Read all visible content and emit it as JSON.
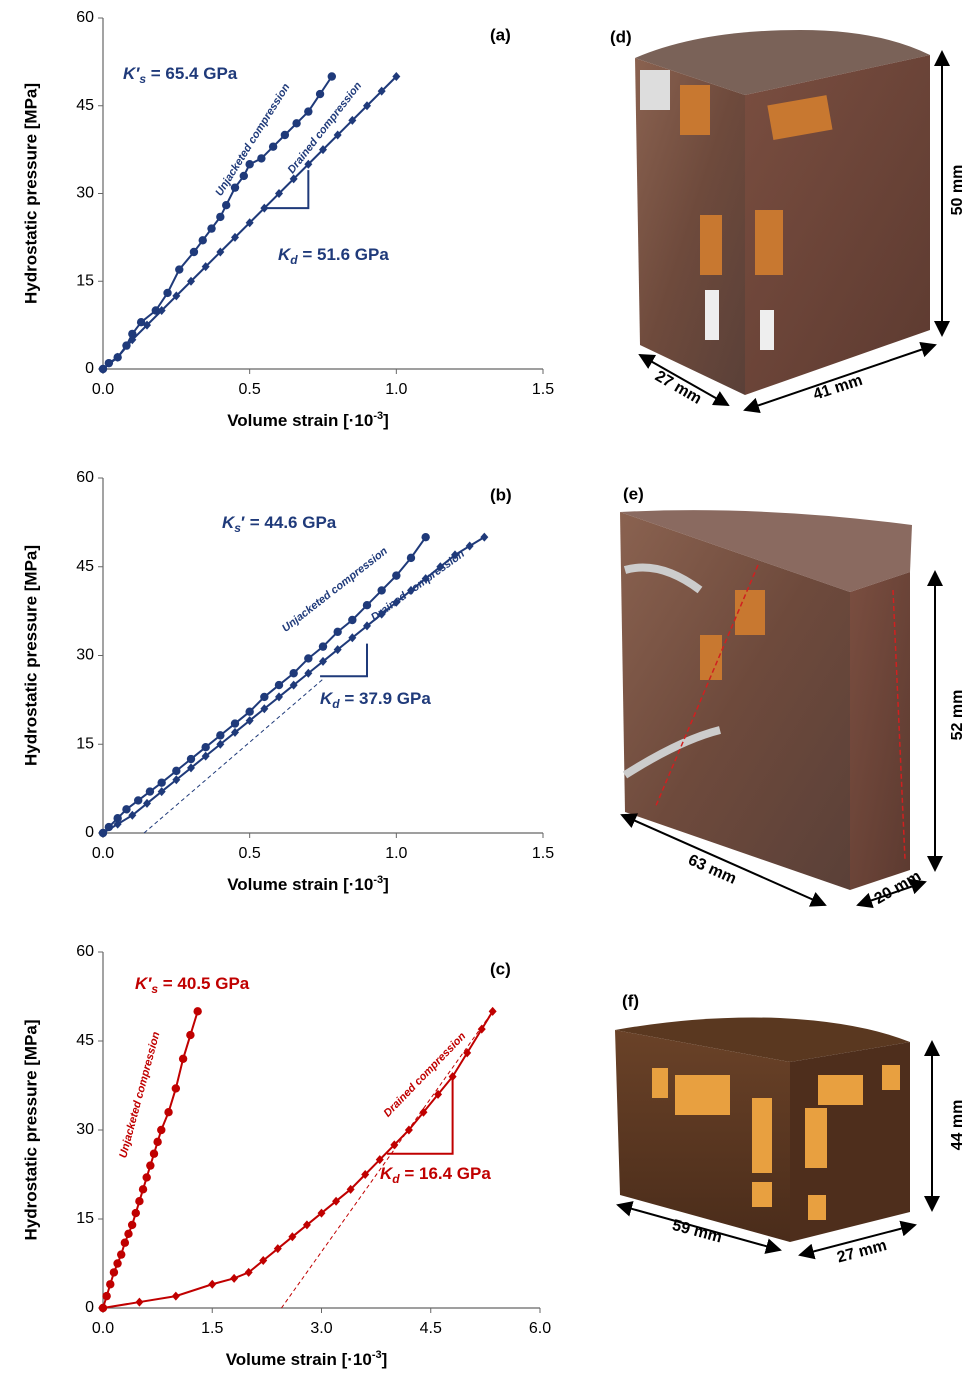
{
  "chart_data": [
    {
      "type": "line",
      "panel_label": "(a)",
      "y_label": "Hydrostatic pressure [MPa]",
      "x_label": {
        "text": "Volume strain [·10",
        "sup": "-3",
        "end": "]"
      },
      "xlim": [
        0,
        1.5
      ],
      "ylim": [
        0,
        60
      ],
      "xticks": [
        {
          "value": 0,
          "label": "0.0"
        },
        {
          "value": 0.5,
          "label": "0.5"
        },
        {
          "value": 1,
          "label": "1.0"
        },
        {
          "value": 1.5,
          "label": "1.5"
        }
      ],
      "yticks": [
        0,
        15,
        30,
        45,
        60
      ],
      "color": "#1f3a7a",
      "series": [
        {
          "name": "Unjacketed compression",
          "marker": "circle",
          "x": [
            0,
            0.02,
            0.05,
            0.08,
            0.1,
            0.13,
            0.18,
            0.22,
            0.26,
            0.31,
            0.34,
            0.37,
            0.4,
            0.42,
            0.45,
            0.48,
            0.5,
            0.54,
            0.58,
            0.62,
            0.66,
            0.7,
            0.74,
            0.78
          ],
          "values": [
            0,
            1,
            2,
            4,
            6,
            8,
            10,
            13,
            17,
            20,
            22,
            24,
            26,
            28,
            31,
            33,
            35,
            36,
            38,
            40,
            42,
            44,
            47,
            50
          ]
        },
        {
          "name": "Drained compression",
          "marker": "diamond",
          "x": [
            0,
            0.05,
            0.1,
            0.15,
            0.2,
            0.25,
            0.3,
            0.35,
            0.4,
            0.45,
            0.5,
            0.55,
            0.6,
            0.65,
            0.7,
            0.75,
            0.8,
            0.85,
            0.9,
            0.95,
            1.0
          ],
          "values": [
            0,
            2,
            5,
            7.5,
            10,
            12.5,
            15,
            17.5,
            20,
            22.5,
            25,
            27.5,
            30,
            32.5,
            35,
            37.5,
            40,
            42.5,
            45,
            47.5,
            50
          ]
        }
      ],
      "slope_triangle": {
        "x": [
          0.55,
          0.7,
          0.7
        ],
        "y": [
          27.5,
          27.5,
          34
        ]
      },
      "annotations": [
        {
          "parts": [
            {
              "text": "K′"
            },
            {
              "sub": "s"
            },
            {
              "text": " = 65.4 GPa"
            }
          ]
        },
        {
          "parts": [
            {
              "text": "K"
            },
            {
              "sub": "d"
            },
            {
              "text": " = 51.6 GPa"
            }
          ]
        }
      ]
    },
    {
      "type": "line",
      "panel_label": "(b)",
      "y_label": "Hydrostatic pressure [MPa]",
      "x_label": {
        "text": "Volume strain [·10",
        "sup": "-3",
        "end": "]"
      },
      "xlim": [
        0,
        1.5
      ],
      "ylim": [
        0,
        60
      ],
      "xticks": [
        {
          "value": 0,
          "label": "0.0"
        },
        {
          "value": 0.5,
          "label": "0.5"
        },
        {
          "value": 1,
          "label": "1.0"
        },
        {
          "value": 1.5,
          "label": "1.5"
        }
      ],
      "yticks": [
        0,
        15,
        30,
        45,
        60
      ],
      "color": "#1f3a7a",
      "series": [
        {
          "name": "Unjacketed compression",
          "marker": "circle",
          "x": [
            0,
            0.02,
            0.05,
            0.08,
            0.12,
            0.16,
            0.2,
            0.25,
            0.3,
            0.35,
            0.4,
            0.45,
            0.5,
            0.55,
            0.6,
            0.65,
            0.7,
            0.75,
            0.8,
            0.85,
            0.9,
            0.95,
            1.0,
            1.05,
            1.1
          ],
          "values": [
            0,
            1,
            2.5,
            4,
            5.5,
            7,
            8.5,
            10.5,
            12.5,
            14.5,
            16.5,
            18.5,
            20.5,
            23,
            25,
            27,
            29.5,
            31.5,
            34,
            36,
            38.5,
            41,
            43.5,
            46.5,
            50
          ]
        },
        {
          "name": "Drained compression",
          "marker": "diamond",
          "x": [
            0,
            0.05,
            0.1,
            0.15,
            0.2,
            0.25,
            0.3,
            0.35,
            0.4,
            0.45,
            0.5,
            0.55,
            0.6,
            0.65,
            0.7,
            0.75,
            0.8,
            0.85,
            0.9,
            0.95,
            1.0,
            1.05,
            1.1,
            1.15,
            1.2,
            1.25,
            1.3
          ],
          "values": [
            0,
            1.5,
            3,
            5,
            7,
            9,
            11,
            13,
            15,
            17,
            19,
            21,
            23,
            25,
            27,
            29,
            31,
            33,
            35,
            37,
            39,
            41,
            43,
            45,
            47,
            48.5,
            50
          ]
        }
      ],
      "tangent": {
        "x": [
          0.14,
          0.75
        ],
        "y": [
          0,
          26
        ]
      },
      "slope_triangle": {
        "x": [
          0.74,
          0.9,
          0.9
        ],
        "y": [
          26.5,
          26.5,
          32
        ]
      },
      "annotations": [
        {
          "parts": [
            {
              "text": "K"
            },
            {
              "sub": "s"
            },
            {
              "text": "′ = 44.6 GPa"
            }
          ]
        },
        {
          "parts": [
            {
              "text": "K"
            },
            {
              "sub": "d"
            },
            {
              "text": " = 37.9 GPa"
            }
          ]
        }
      ]
    },
    {
      "type": "line",
      "panel_label": "(c)",
      "y_label": "Hydrostatic pressure [MPa]",
      "x_label": {
        "text": "Volume strain [·10",
        "sup": "-3",
        "end": "]"
      },
      "xlim": [
        0,
        6
      ],
      "ylim": [
        0,
        60
      ],
      "xticks": [
        {
          "value": 0,
          "label": "0.0"
        },
        {
          "value": 1.5,
          "label": "1.5"
        },
        {
          "value": 3,
          "label": "3.0"
        },
        {
          "value": 4.5,
          "label": "4.5"
        },
        {
          "value": 6,
          "label": "6.0"
        }
      ],
      "yticks": [
        0,
        15,
        30,
        45,
        60
      ],
      "color": "#c00000",
      "series": [
        {
          "name": "Unjacketed compression",
          "marker": "circle",
          "x": [
            0,
            0.05,
            0.1,
            0.15,
            0.2,
            0.25,
            0.3,
            0.35,
            0.4,
            0.45,
            0.5,
            0.55,
            0.6,
            0.65,
            0.7,
            0.75,
            0.8,
            0.9,
            1.0,
            1.1,
            1.2,
            1.3
          ],
          "values": [
            0,
            2,
            4,
            6,
            7.5,
            9,
            11,
            12.5,
            14,
            16,
            18,
            20,
            22,
            24,
            26,
            28,
            30,
            33,
            37,
            42,
            46,
            50
          ]
        },
        {
          "name": "Drained compression",
          "marker": "diamond",
          "x": [
            0,
            0.5,
            1.0,
            1.5,
            1.8,
            2.0,
            2.2,
            2.4,
            2.6,
            2.8,
            3.0,
            3.2,
            3.4,
            3.6,
            3.8,
            4.0,
            4.2,
            4.4,
            4.6,
            4.8,
            5.0,
            5.2,
            5.35
          ],
          "values": [
            0,
            1,
            2,
            4,
            5,
            6,
            8,
            10,
            12,
            14,
            16,
            18,
            20,
            22.5,
            25,
            27.5,
            30,
            33,
            36,
            39,
            43,
            47,
            50
          ]
        }
      ],
      "tangent": {
        "x": [
          2.45,
          5.35
        ],
        "y": [
          0,
          50
        ]
      },
      "slope_triangle": {
        "x": [
          3.9,
          4.8,
          4.8
        ],
        "y": [
          26,
          26,
          39
        ]
      },
      "annotations": [
        {
          "parts": [
            {
              "text": "K′"
            },
            {
              "sub": "s"
            },
            {
              "text": " = 40.5 GPa"
            }
          ]
        },
        {
          "parts": [
            {
              "text": "K"
            },
            {
              "sub": "d"
            },
            {
              "text": " = 16.4 GPa"
            }
          ]
        }
      ]
    }
  ],
  "photos": [
    {
      "label": "(d)",
      "height": "50 mm",
      "depth": "27 mm",
      "width": "41 mm"
    },
    {
      "label": "(e)",
      "height": "52 mm",
      "width": "63 mm",
      "depth": "20 mm"
    },
    {
      "label": "(f)",
      "height": "44 mm",
      "width": "59 mm",
      "depth": "27 mm"
    }
  ]
}
